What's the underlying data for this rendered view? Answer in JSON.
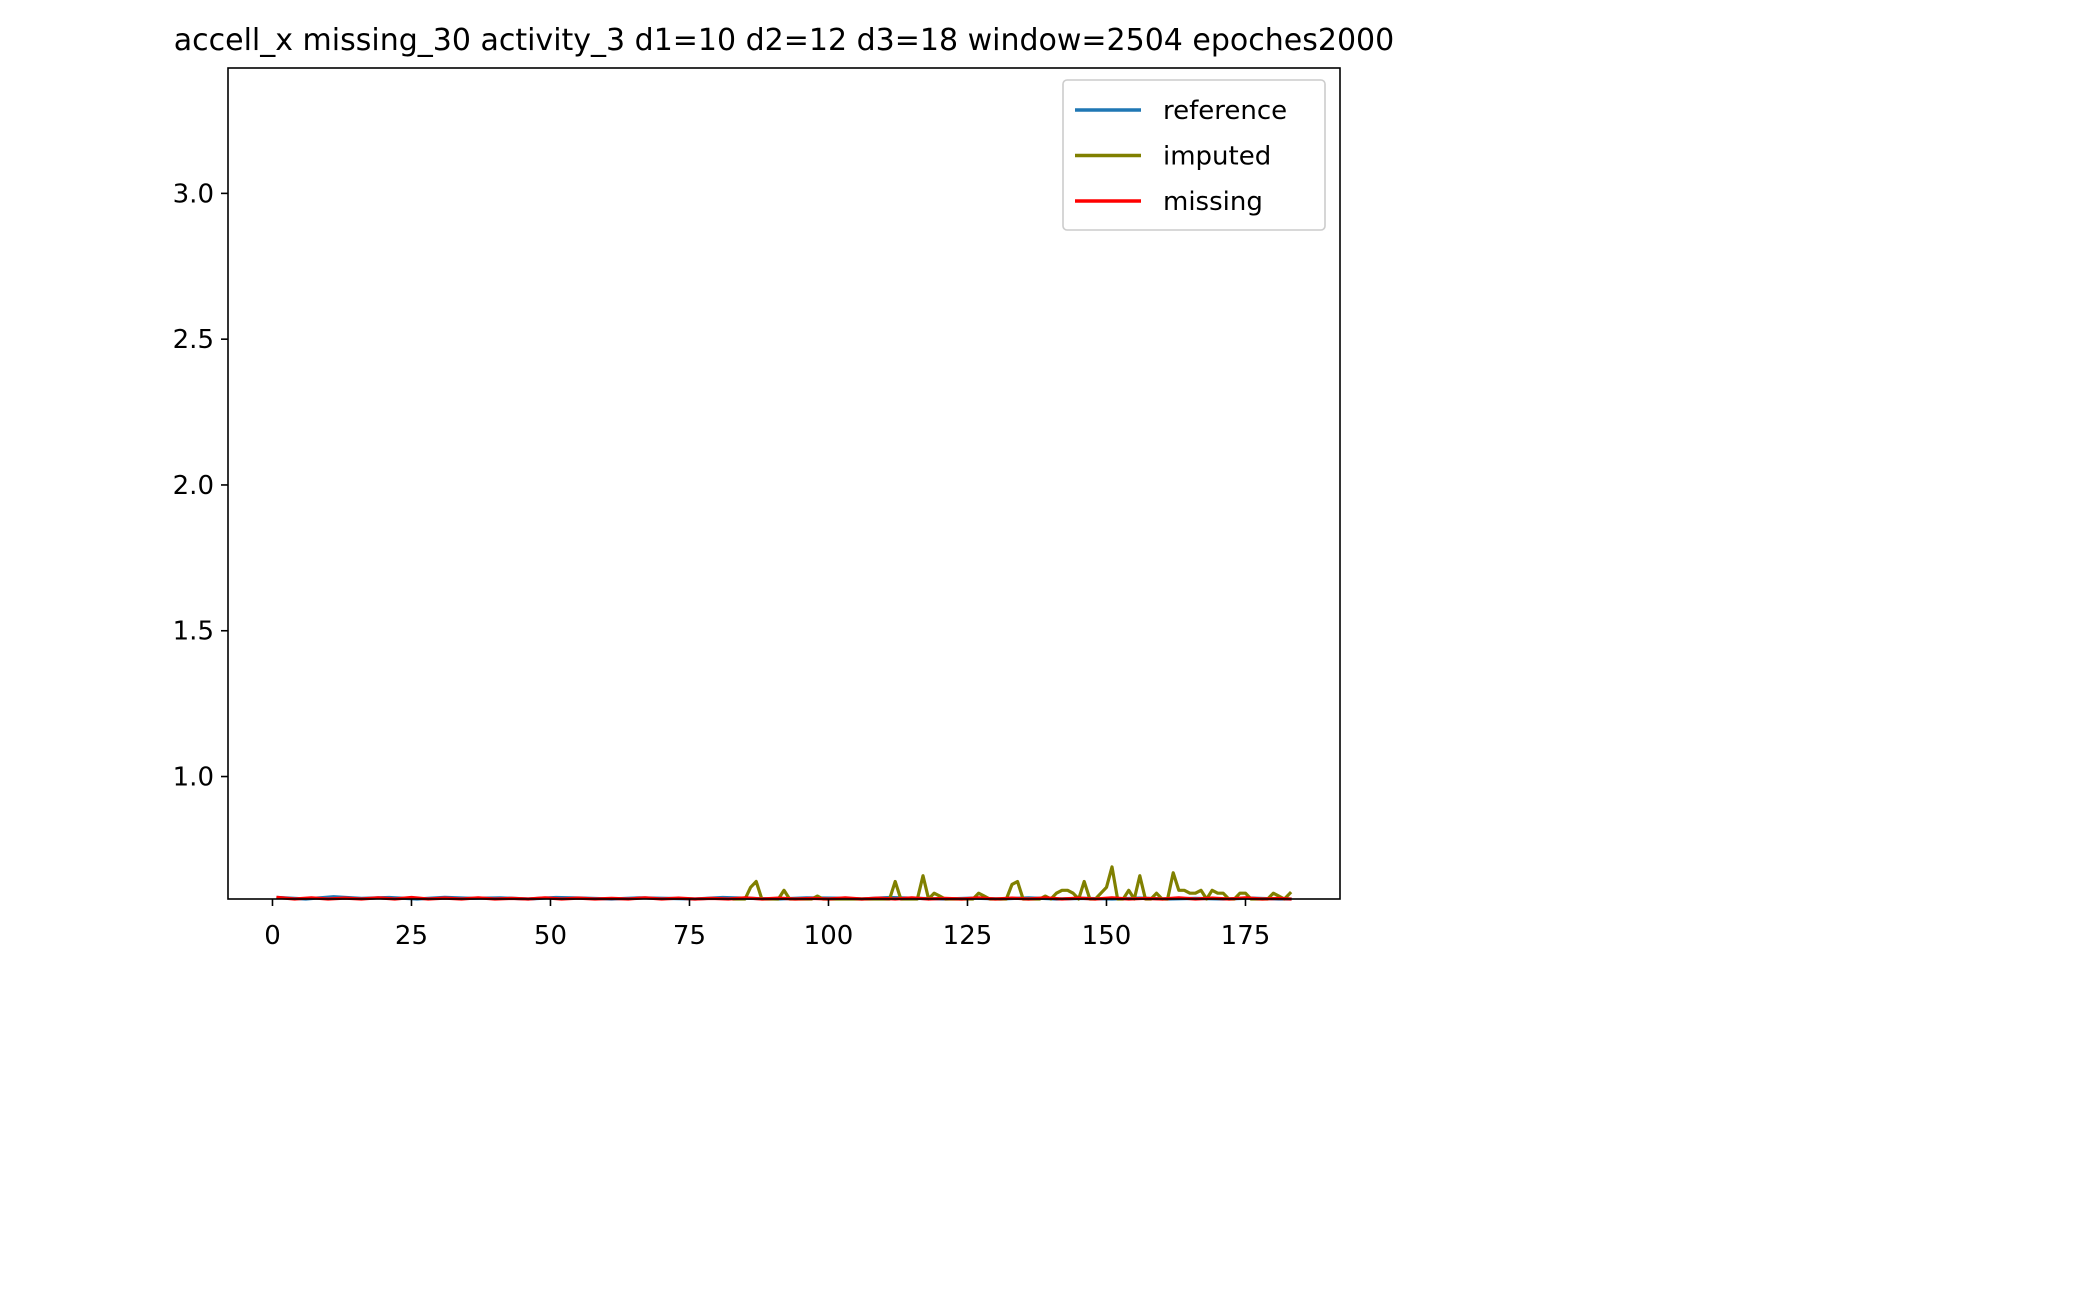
{
  "chart_data": {
    "type": "line",
    "title": "accell_x missing_30 activity_3 d1=10 d2=12 d3=18 window=2504 epoches2000",
    "xlabel": "",
    "ylabel": "",
    "xlim": [
      -8,
      192
    ],
    "ylim": [
      0.58,
      3.43
    ],
    "x_ticks": [
      0,
      25,
      50,
      75,
      100,
      125,
      150,
      175
    ],
    "x_tick_labels": [
      "0",
      "25",
      "50",
      "75",
      "100",
      "125",
      "150",
      "175"
    ],
    "y_ticks": [
      1.0,
      1.5,
      2.0,
      2.5,
      3.0
    ],
    "y_tick_labels": [
      "1.0",
      "1.5",
      "2.0",
      "2.5",
      "3.0"
    ],
    "grid": false,
    "legend_position": "top-right",
    "legend": [
      "reference",
      "imputed",
      "missing"
    ],
    "series": [
      {
        "name": "reference",
        "color": "#1f77b4",
        "x": [
          1,
          6,
          11,
          16,
          21,
          26,
          31,
          36,
          41,
          46,
          51,
          56,
          61,
          66,
          71,
          76,
          81,
          86,
          91,
          96,
          101,
          106,
          111,
          116,
          121,
          126,
          131,
          136,
          141,
          146,
          151,
          156,
          161,
          166,
          171,
          176,
          181,
          183
        ],
        "y": [
          0.585,
          0.58,
          0.588,
          0.582,
          0.585,
          0.58,
          0.586,
          0.582,
          0.584,
          0.58,
          0.585,
          0.583,
          0.58,
          0.584,
          0.582,
          0.58,
          0.585,
          0.582,
          0.58,
          0.584,
          0.583,
          0.58,
          0.585,
          0.582,
          0.58,
          0.583,
          0.58,
          0.584,
          0.58,
          0.582,
          0.58,
          0.583,
          0.58,
          0.582,
          0.58,
          0.583,
          0.58,
          0.58
        ]
      },
      {
        "name": "imputed",
        "color": "#808000",
        "x": [
          83,
          84,
          85,
          86,
          87,
          88,
          89,
          90,
          91,
          92,
          93,
          94,
          95,
          96,
          97,
          98,
          99,
          110,
          111,
          112,
          113,
          114,
          115,
          116,
          117,
          118,
          119,
          120,
          121,
          122,
          125,
          126,
          127,
          128,
          129,
          130,
          131,
          132,
          133,
          134,
          135,
          136,
          137,
          138,
          139,
          140,
          141,
          142,
          143,
          144,
          145,
          146,
          147,
          148,
          149,
          150,
          151,
          152,
          153,
          154,
          155,
          156,
          157,
          158,
          159,
          160,
          161,
          162,
          163,
          164,
          165,
          166,
          167,
          168,
          169,
          170,
          171,
          172,
          173,
          174,
          175,
          176,
          177,
          178,
          179,
          180,
          181,
          182,
          183
        ],
        "y": [
          0.58,
          0.58,
          0.58,
          0.62,
          0.64,
          0.58,
          0.58,
          0.58,
          0.58,
          0.61,
          0.58,
          0.58,
          0.58,
          0.58,
          0.58,
          0.59,
          0.58,
          0.58,
          0.58,
          0.64,
          0.58,
          0.58,
          0.58,
          0.58,
          0.66,
          0.58,
          0.6,
          0.59,
          0.58,
          0.58,
          0.58,
          0.58,
          0.6,
          0.59,
          0.58,
          0.58,
          0.58,
          0.58,
          0.63,
          0.64,
          0.58,
          0.58,
          0.58,
          0.58,
          0.59,
          0.58,
          0.6,
          0.61,
          0.61,
          0.6,
          0.58,
          0.64,
          0.58,
          0.58,
          0.6,
          0.62,
          0.69,
          0.58,
          0.58,
          0.61,
          0.58,
          0.66,
          0.58,
          0.58,
          0.6,
          0.58,
          0.58,
          0.67,
          0.61,
          0.61,
          0.6,
          0.6,
          0.61,
          0.58,
          0.61,
          0.6,
          0.6,
          0.58,
          0.58,
          0.6,
          0.6,
          0.58,
          0.58,
          0.58,
          0.58,
          0.6,
          0.59,
          0.58,
          0.6
        ]
      },
      {
        "name": "missing",
        "color": "#ff0000",
        "x": [
          1,
          4,
          7,
          10,
          13,
          16,
          19,
          22,
          25,
          28,
          31,
          34,
          37,
          40,
          43,
          46,
          49,
          52,
          55,
          58,
          61,
          64,
          67,
          70,
          73,
          76,
          79,
          82,
          85,
          88,
          91,
          94,
          97,
          100,
          103,
          106,
          109,
          112,
          115,
          118,
          121,
          124,
          127,
          130,
          133,
          136,
          139,
          142,
          145,
          148,
          151,
          154,
          157,
          160,
          163,
          166,
          169,
          172,
          175,
          178,
          181,
          183
        ],
        "y": [
          0.585,
          0.58,
          0.584,
          0.58,
          0.583,
          0.58,
          0.584,
          0.58,
          0.585,
          0.58,
          0.583,
          0.58,
          0.584,
          0.58,
          0.582,
          0.58,
          0.584,
          0.58,
          0.583,
          0.58,
          0.582,
          0.58,
          0.584,
          0.58,
          0.583,
          0.58,
          0.582,
          0.58,
          0.584,
          0.58,
          0.583,
          0.58,
          0.582,
          0.58,
          0.584,
          0.58,
          0.583,
          0.58,
          0.584,
          0.58,
          0.582,
          0.58,
          0.584,
          0.58,
          0.583,
          0.58,
          0.584,
          0.58,
          0.583,
          0.58,
          0.584,
          0.58,
          0.582,
          0.58,
          0.584,
          0.58,
          0.583,
          0.58,
          0.584,
          0.58,
          0.582,
          0.58
        ]
      }
    ]
  }
}
